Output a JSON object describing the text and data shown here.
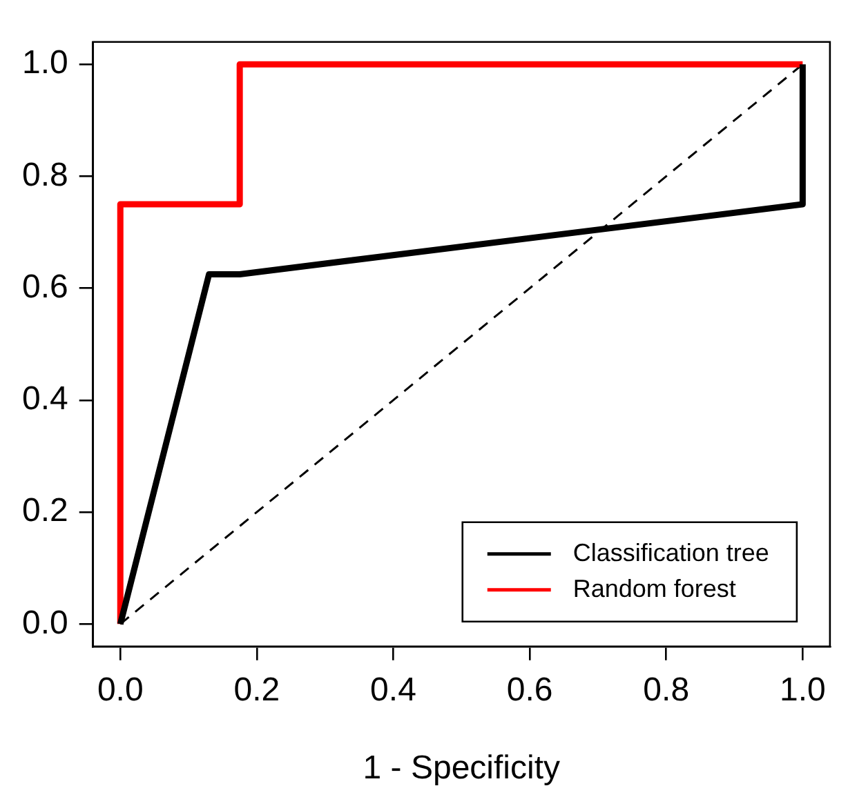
{
  "chart_data": {
    "type": "line",
    "xlabel": "1 - Specificity",
    "xlim": [
      -0.04,
      1.04
    ],
    "ylim": [
      -0.04,
      1.04
    ],
    "xticks": [
      {
        "value": 0,
        "label": "0.0"
      },
      {
        "value": 0.2,
        "label": "0.2"
      },
      {
        "value": 0.4,
        "label": "0.4"
      },
      {
        "value": 0.6,
        "label": "0.6"
      },
      {
        "value": 0.8,
        "label": "0.8"
      },
      {
        "value": 1,
        "label": "1.0"
      }
    ],
    "yticks": [
      {
        "value": 0,
        "label": "0.0"
      },
      {
        "value": 0.2,
        "label": "0.2"
      },
      {
        "value": 0.4,
        "label": "0.4"
      },
      {
        "value": 0.6,
        "label": "0.6"
      },
      {
        "value": 0.8,
        "label": "0.8"
      },
      {
        "value": 1,
        "label": "1.0"
      }
    ],
    "legend": "bottom right",
    "marker": "none",
    "series": [
      {
        "name": "Classification tree",
        "color": "#000000",
        "x": [
          0,
          0.13,
          0.175,
          1,
          1
        ],
        "values": [
          0,
          0.625,
          0.625,
          0.75,
          1
        ]
      },
      {
        "name": "Random forest",
        "color": "#ff0000",
        "x": [
          0,
          0,
          0.175,
          0.175,
          1
        ],
        "values": [
          0,
          0.75,
          0.75,
          1,
          1
        ]
      },
      {
        "color": "#000000",
        "line_style": "dashed",
        "x": [
          0,
          1
        ],
        "values": [
          0,
          1
        ]
      }
    ]
  }
}
